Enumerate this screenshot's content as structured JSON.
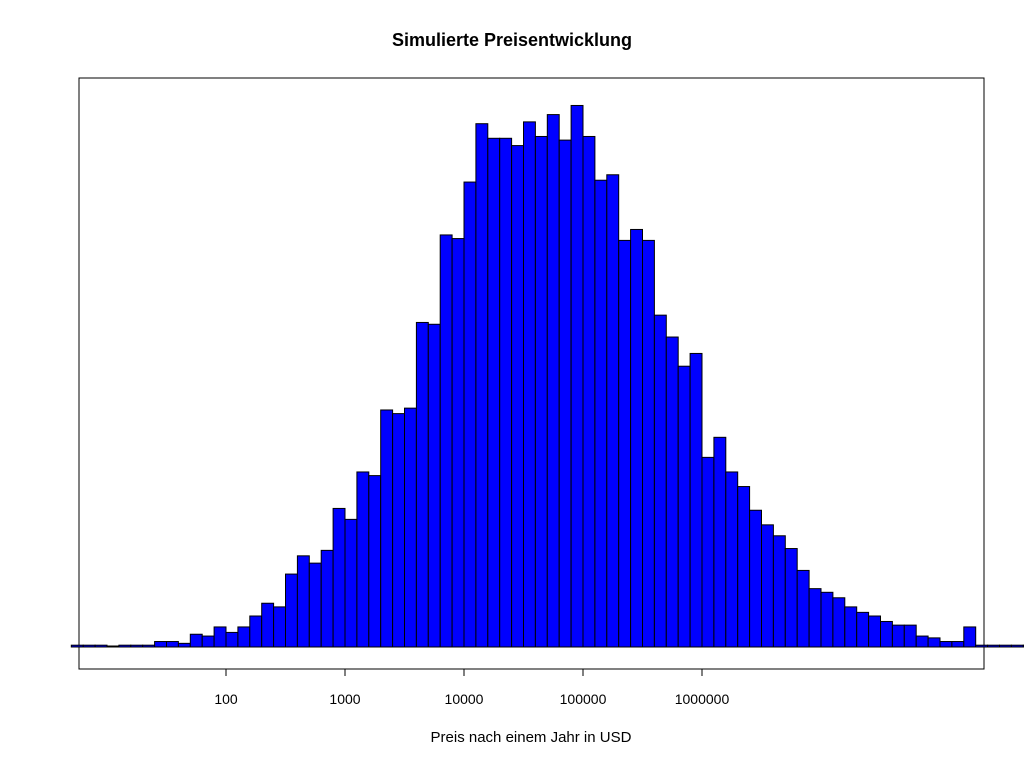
{
  "chart_data": {
    "type": "bar",
    "title": "Simulierte Preisentwicklung",
    "xlabel": "Preis nach einem Jahr in USD",
    "ylabel": "",
    "x_scale": "log10",
    "x_ticks": [
      {
        "value": 100,
        "label": "100"
      },
      {
        "value": 1000,
        "label": "1000"
      },
      {
        "value": 10000,
        "label": "10000"
      },
      {
        "value": 100000,
        "label": "100000"
      },
      {
        "value": 1000000,
        "label": "1000000"
      }
    ],
    "y_axis_shown": false,
    "grid": false,
    "bar_color": "#0000ff",
    "bar_edge_color": "#000000",
    "bin_width_log10": 0.1,
    "bins_log10_start": 0.7,
    "counts": [
      1,
      1,
      1,
      0,
      1,
      1,
      1,
      3,
      3,
      2,
      7,
      6,
      11,
      8,
      11,
      17,
      24,
      22,
      40,
      50,
      46,
      53,
      76,
      70,
      96,
      94,
      130,
      128,
      131,
      178,
      177,
      226,
      224,
      255,
      287,
      279,
      279,
      275,
      288,
      280,
      292,
      278,
      297,
      280,
      256,
      259,
      223,
      229,
      223,
      182,
      170,
      154,
      161,
      104,
      115,
      96,
      88,
      75,
      67,
      61,
      54,
      42,
      32,
      30,
      27,
      22,
      19,
      17,
      14,
      12,
      12,
      6,
      5,
      3,
      3,
      11,
      1,
      1,
      1,
      1,
      1,
      2
    ],
    "ylim": [
      0,
      300
    ]
  },
  "colors": {
    "bar": "#0000ff",
    "edge": "#000000",
    "background": "#ffffff"
  }
}
